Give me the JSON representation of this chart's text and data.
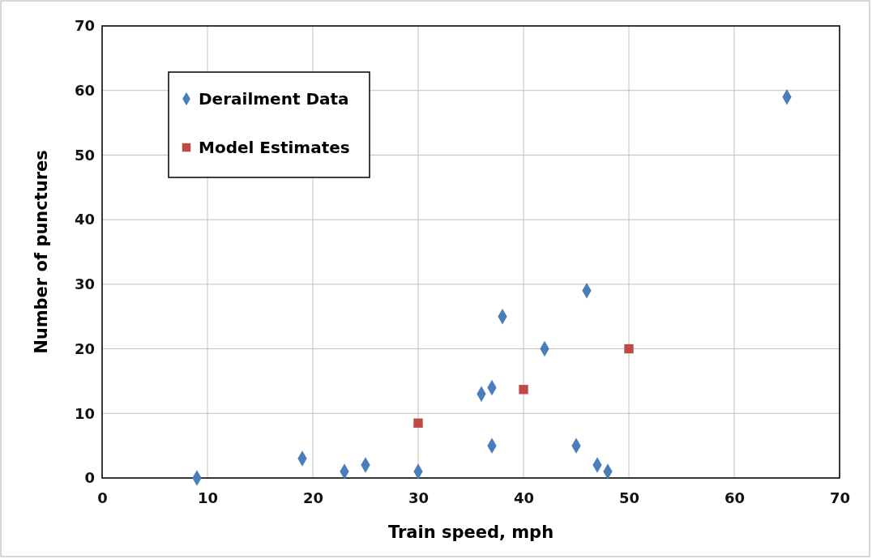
{
  "chart_data": {
    "type": "scatter",
    "xlabel": "Train speed, mph",
    "ylabel": "Number of punctures",
    "xlim": [
      0,
      70
    ],
    "xticks": [
      0,
      10,
      20,
      30,
      40,
      50,
      60,
      70
    ],
    "ylim": [
      0,
      70
    ],
    "yticks": [
      0,
      10,
      20,
      30,
      40,
      50,
      60,
      70
    ],
    "grid": true,
    "legend": "top left",
    "series": [
      {
        "name": "Derailment Data",
        "color": "#4a7ebb",
        "marker": "diamond",
        "x": [
          9,
          19,
          23,
          25,
          30,
          36,
          37,
          37,
          38,
          42,
          45,
          46,
          47,
          48,
          65
        ],
        "values": [
          0,
          3,
          1,
          2,
          1,
          13,
          14,
          5,
          25,
          20,
          5,
          29,
          2,
          1,
          59
        ]
      },
      {
        "name": "Model Estimates",
        "color": "#be4b48",
        "marker": "square",
        "x": [
          30,
          40,
          50
        ],
        "values": [
          8.5,
          13.7,
          20
        ]
      }
    ]
  }
}
